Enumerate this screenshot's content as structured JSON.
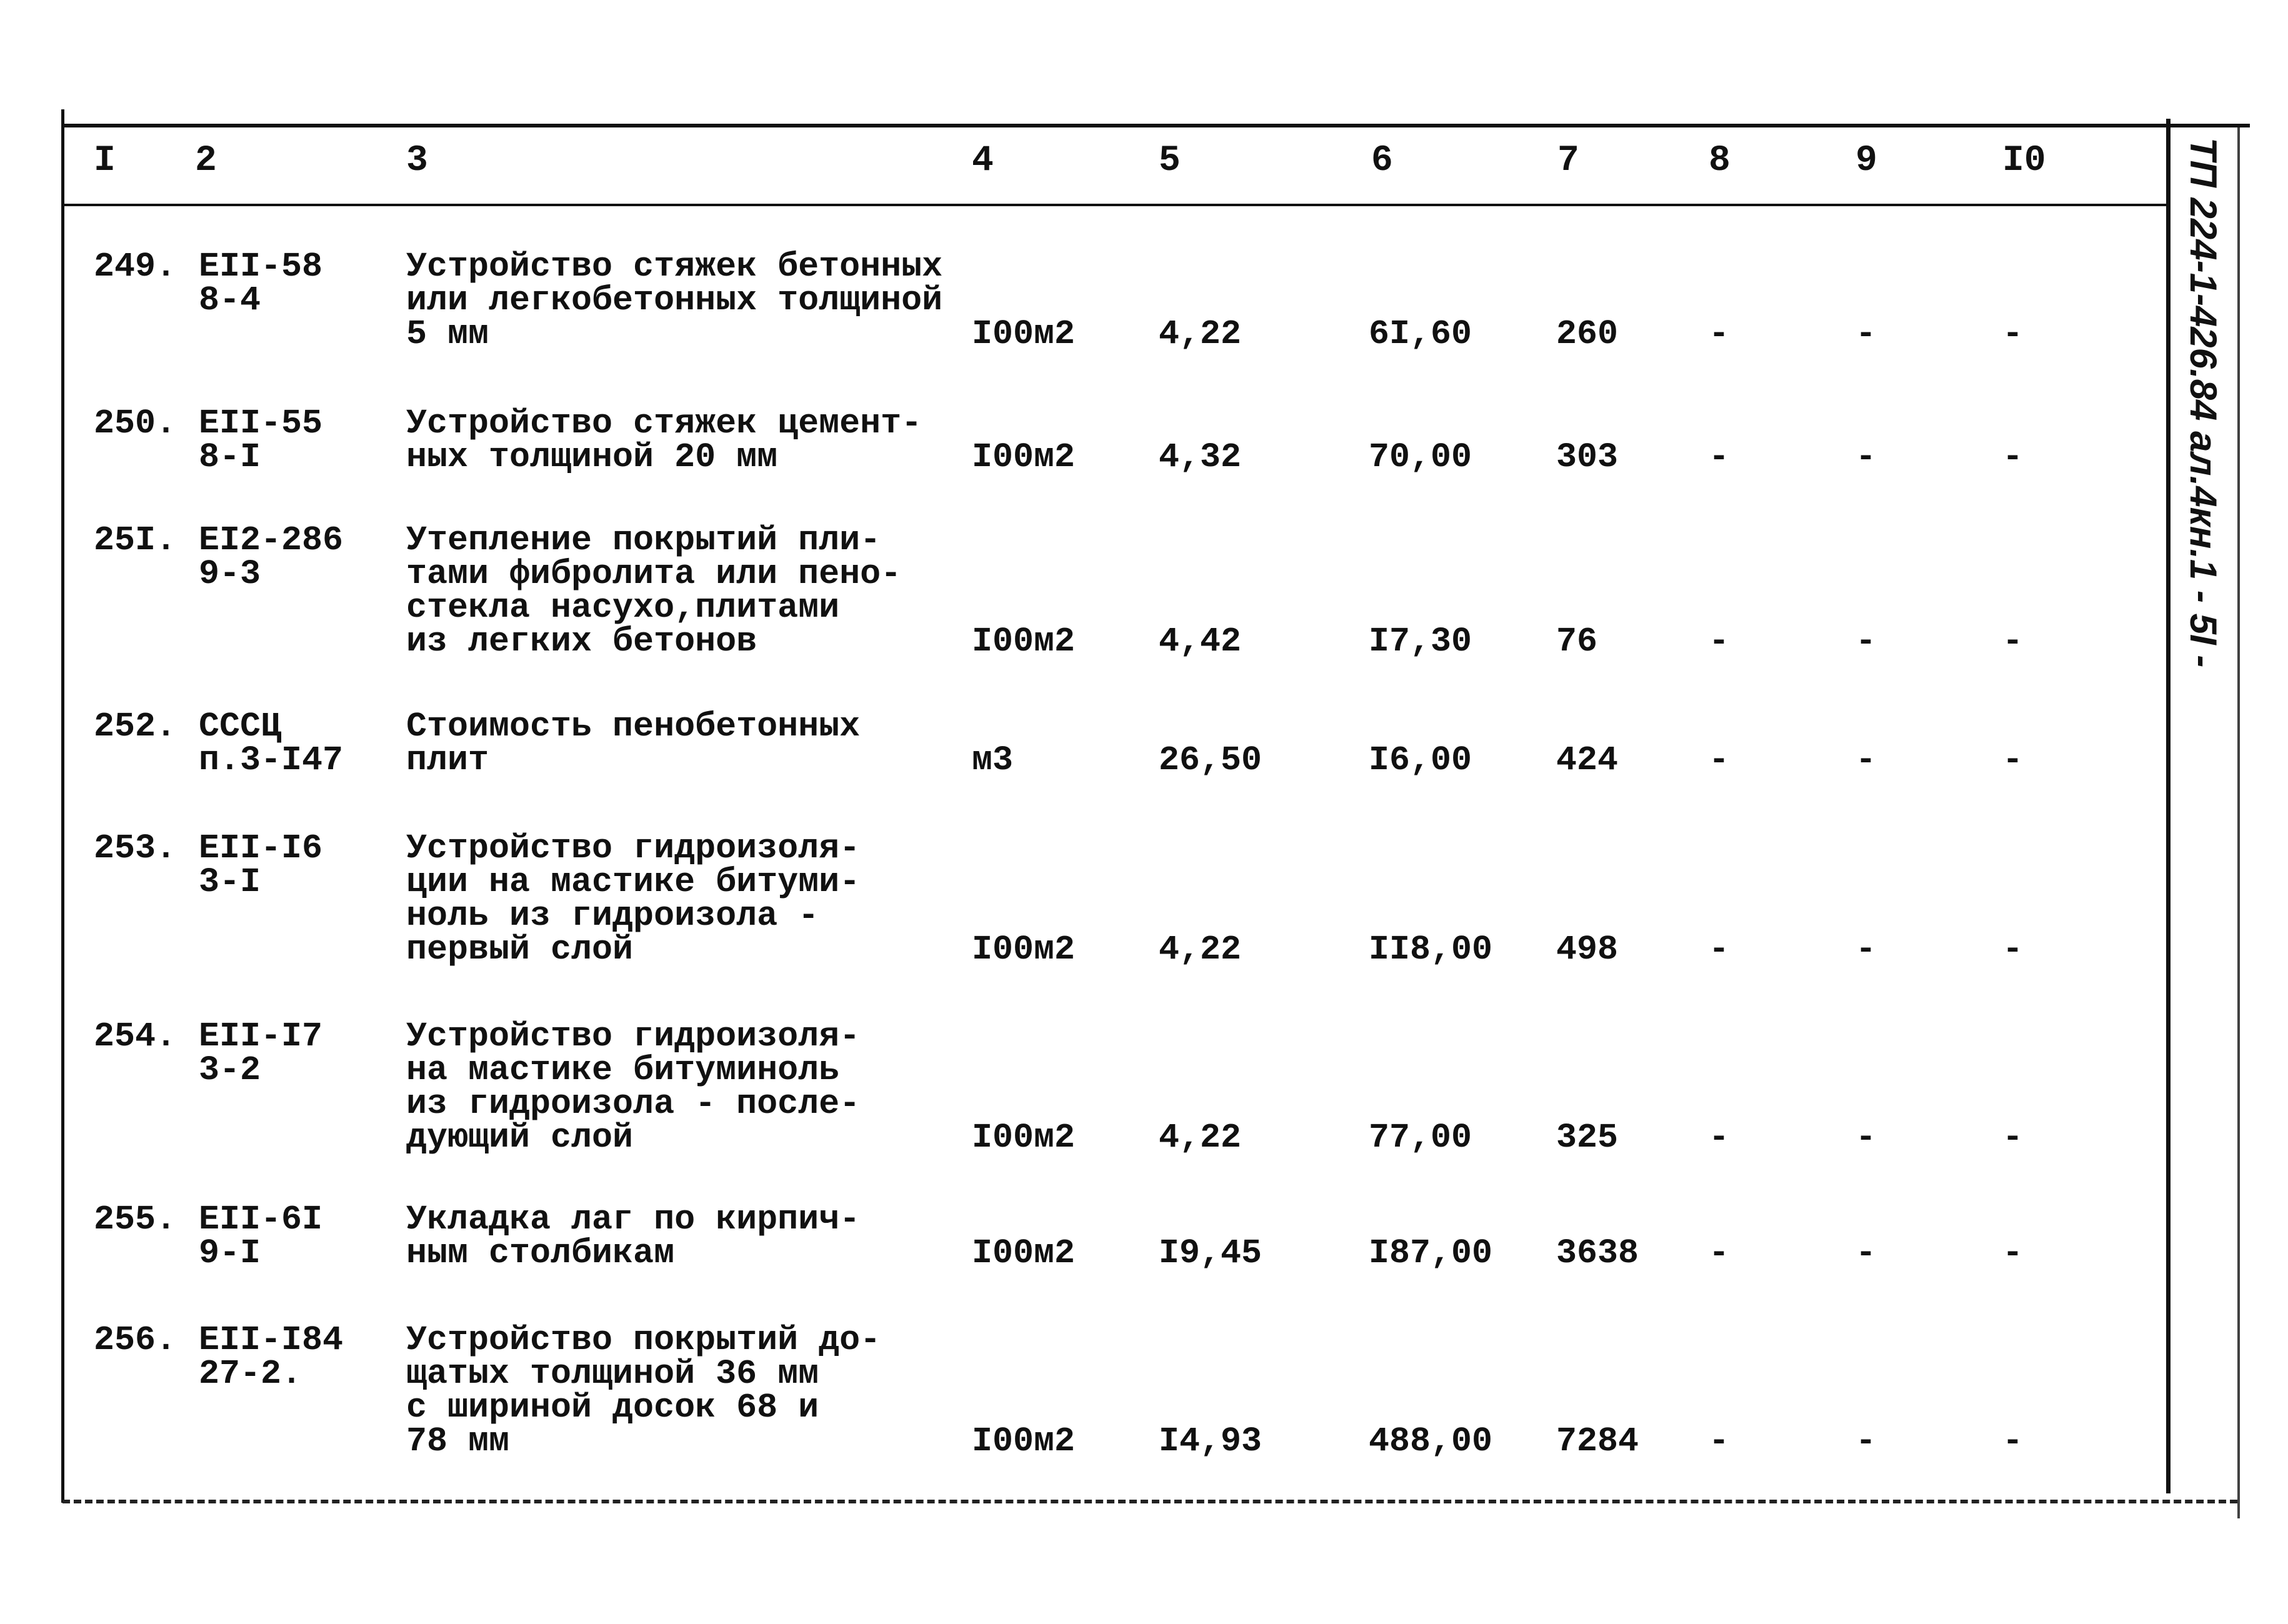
{
  "header": {
    "columns": [
      "I",
      "2",
      "3",
      "4",
      "5",
      "6",
      "7",
      "8",
      "9",
      "I0"
    ]
  },
  "side_label": "ТП 224-1-426.84 ал.4кн.1 - 5I -",
  "rows": [
    {
      "num": "249.",
      "code": [
        "ЕII-58",
        "8-4"
      ],
      "desc": [
        "Устройство стяжек бетонных",
        "или легкобетонных толщиной",
        "5 мм"
      ],
      "unit": "I00м2",
      "c5": "4,22",
      "c6": "6I,60",
      "c7": "260",
      "c8": "-",
      "c9": "-",
      "c10": "-"
    },
    {
      "num": "250.",
      "code": [
        "ЕII-55",
        "8-I"
      ],
      "desc": [
        "Устройство стяжек цемент-",
        "ных толщиной 20 мм"
      ],
      "unit": "I00м2",
      "c5": "4,32",
      "c6": "70,00",
      "c7": "303",
      "c8": "-",
      "c9": "-",
      "c10": "-"
    },
    {
      "num": "25I.",
      "code": [
        "ЕI2-286",
        "9-3"
      ],
      "desc": [
        "Утепление покрытий пли-",
        "тами фибролита или пено-",
        "стекла насухо,плитами",
        "из легких бетонов"
      ],
      "unit": "I00м2",
      "c5": "4,42",
      "c6": "I7,30",
      "c7": "76",
      "c8": "-",
      "c9": "-",
      "c10": "-"
    },
    {
      "num": "252.",
      "code": [
        "СССЦ",
        "п.3-I47"
      ],
      "desc": [
        "Стоимость пенобетонных",
        "плит"
      ],
      "unit": "м3",
      "c5": "26,50",
      "c6": "I6,00",
      "c7": "424",
      "c8": "-",
      "c9": "-",
      "c10": "-"
    },
    {
      "num": "253.",
      "code": [
        "ЕII-I6",
        "3-I"
      ],
      "desc": [
        "Устройство гидроизоля-",
        "ции на мастике битуми-",
        "ноль из гидроизола -",
        "первый слой"
      ],
      "unit": "I00м2",
      "c5": "4,22",
      "c6": "II8,00",
      "c7": "498",
      "c8": "-",
      "c9": "-",
      "c10": "-"
    },
    {
      "num": "254.",
      "code": [
        "ЕII-I7",
        "3-2"
      ],
      "desc": [
        "Устройство гидроизоля-",
        "на мастике битуминоль",
        "из гидроизола - после-",
        "дующий слой"
      ],
      "unit": "I00м2",
      "c5": "4,22",
      "c6": "77,00",
      "c7": "325",
      "c8": "-",
      "c9": "-",
      "c10": "-"
    },
    {
      "num": "255.",
      "code": [
        "ЕII-6I",
        "9-I"
      ],
      "desc": [
        "Укладка лаг по кирпич-",
        "ным столбикам"
      ],
      "unit": "I00м2",
      "c5": "I9,45",
      "c6": "I87,00",
      "c7": "3638",
      "c8": "-",
      "c9": "-",
      "c10": "-"
    },
    {
      "num": "256.",
      "code": [
        "ЕII-I84",
        "27-2."
      ],
      "desc": [
        "Устройство покрытий до-",
        "щатых толщиной 36 мм",
        "с шириной досок 68 и",
        "78 мм"
      ],
      "unit": "I00м2",
      "c5": "I4,93",
      "c6": "488,00",
      "c7": "7284",
      "c8": "-",
      "c9": "-",
      "c10": "-"
    }
  ]
}
